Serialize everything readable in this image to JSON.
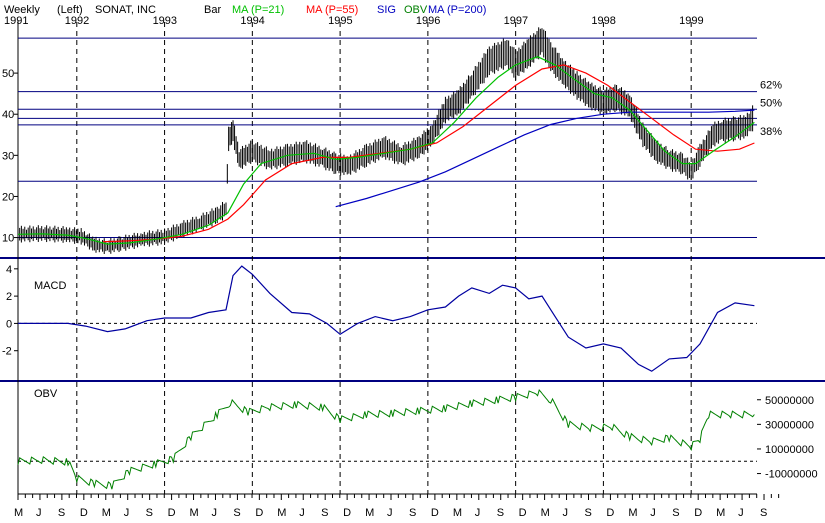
{
  "header": {
    "period": "Weekly",
    "axis_side": "(Left)",
    "company": "SONAT, INC",
    "bar_label": "Bar",
    "ma21_label": "MA (P=21)",
    "ma55_label": "MA (P=55)",
    "sig_label": "SIG",
    "obv_label": "OBV",
    "ma200_label": "MA (P=200)"
  },
  "colors": {
    "price": "#000000",
    "ma21": "#00c000",
    "ma55": "#ff0000",
    "ma200": "#0000c0",
    "macd": "#0000a0",
    "obv": "#008000",
    "frame": "#000080"
  },
  "chart_data": [
    {
      "type": "line",
      "name": "price",
      "years": [
        "1991",
        "1992",
        "1993",
        "1994",
        "1995",
        "1996",
        "1997",
        "1998",
        "1999"
      ],
      "months": [
        "M",
        "J",
        "S",
        "D",
        "M",
        "J",
        "S",
        "D",
        "M",
        "J",
        "S",
        "D",
        "M",
        "J",
        "S",
        "D",
        "M",
        "J",
        "S",
        "D",
        "M",
        "J",
        "S",
        "D",
        "M",
        "J",
        "S",
        "D",
        "M",
        "J",
        "S",
        "D",
        "M",
        "J",
        "S"
      ],
      "x_start": 1991.33,
      "x_end": 1999.75,
      "ylim": [
        6,
        60
      ],
      "yticks": [
        10,
        20,
        30,
        40,
        50
      ],
      "levels": [
        {
          "value": 58.5,
          "label": ""
        },
        {
          "value": 45.5,
          "label": "62%"
        },
        {
          "value": 41.2,
          "label": "50%"
        },
        {
          "value": 39.0,
          "label": ""
        },
        {
          "value": 37.4,
          "label": "38%"
        },
        {
          "value": 23.7,
          "label": ""
        },
        {
          "value": 10.0,
          "label": ""
        }
      ],
      "close": [
        [
          1991.33,
          10.8
        ],
        [
          1991.6,
          11
        ],
        [
          1991.9,
          10.7
        ],
        [
          1992.05,
          10.3
        ],
        [
          1992.2,
          8.3
        ],
        [
          1992.35,
          7.8
        ],
        [
          1992.5,
          8.5
        ],
        [
          1992.75,
          9.6
        ],
        [
          1993.0,
          10.2
        ],
        [
          1993.2,
          12
        ],
        [
          1993.4,
          13.5
        ],
        [
          1993.6,
          15.5
        ],
        [
          1993.7,
          17
        ],
        [
          1993.73,
          34
        ],
        [
          1993.78,
          36
        ],
        [
          1993.85,
          29
        ],
        [
          1994.0,
          31
        ],
        [
          1994.2,
          29
        ],
        [
          1994.4,
          30
        ],
        [
          1994.6,
          31
        ],
        [
          1994.8,
          29.5
        ],
        [
          1994.95,
          28
        ],
        [
          1995.1,
          27.5
        ],
        [
          1995.3,
          30
        ],
        [
          1995.5,
          32
        ],
        [
          1995.7,
          30
        ],
        [
          1995.9,
          32
        ],
        [
          1996.05,
          35
        ],
        [
          1996.2,
          41
        ],
        [
          1996.35,
          43
        ],
        [
          1996.5,
          47
        ],
        [
          1996.7,
          53
        ],
        [
          1996.9,
          55
        ],
        [
          1997.0,
          52
        ],
        [
          1997.15,
          55
        ],
        [
          1997.3,
          58
        ],
        [
          1997.4,
          54
        ],
        [
          1997.55,
          50
        ],
        [
          1997.7,
          47
        ],
        [
          1997.85,
          44.5
        ],
        [
          1998.0,
          43
        ],
        [
          1998.15,
          44
        ],
        [
          1998.3,
          42
        ],
        [
          1998.45,
          35
        ],
        [
          1998.6,
          31
        ],
        [
          1998.75,
          29
        ],
        [
          1998.9,
          28
        ],
        [
          1999.0,
          26
        ],
        [
          1999.1,
          30
        ],
        [
          1999.25,
          35
        ],
        [
          1999.35,
          36
        ],
        [
          1999.5,
          36.5
        ],
        [
          1999.62,
          37
        ],
        [
          1999.72,
          39.5
        ]
      ],
      "ma21": [
        [
          1991.33,
          10.8
        ],
        [
          1991.6,
          10.9
        ],
        [
          1991.9,
          10.6
        ],
        [
          1992.1,
          9.8
        ],
        [
          1992.35,
          8.4
        ],
        [
          1992.6,
          8.7
        ],
        [
          1992.9,
          9.6
        ],
        [
          1993.2,
          10.8
        ],
        [
          1993.5,
          13
        ],
        [
          1993.72,
          16
        ],
        [
          1993.9,
          23
        ],
        [
          1994.1,
          28
        ],
        [
          1994.4,
          30
        ],
        [
          1994.7,
          30.5
        ],
        [
          1994.95,
          29
        ],
        [
          1995.2,
          29.5
        ],
        [
          1995.5,
          30.5
        ],
        [
          1995.8,
          31.5
        ],
        [
          1996.05,
          33
        ],
        [
          1996.3,
          38
        ],
        [
          1996.55,
          44
        ],
        [
          1996.8,
          49
        ],
        [
          1997.0,
          52
        ],
        [
          1997.25,
          54
        ],
        [
          1997.45,
          52
        ],
        [
          1997.7,
          48
        ],
        [
          1997.9,
          45
        ],
        [
          1998.1,
          44
        ],
        [
          1998.3,
          41
        ],
        [
          1998.5,
          36
        ],
        [
          1998.7,
          31
        ],
        [
          1998.9,
          28
        ],
        [
          1999.05,
          28
        ],
        [
          1999.25,
          31
        ],
        [
          1999.5,
          34.5
        ],
        [
          1999.72,
          38
        ]
      ],
      "ma55": [
        [
          1992.3,
          9
        ],
        [
          1992.6,
          9.2
        ],
        [
          1992.9,
          9.6
        ],
        [
          1993.2,
          10.3
        ],
        [
          1993.5,
          12
        ],
        [
          1993.72,
          14.5
        ],
        [
          1993.9,
          18
        ],
        [
          1994.15,
          24
        ],
        [
          1994.45,
          28
        ],
        [
          1994.8,
          29.5
        ],
        [
          1995.1,
          29.5
        ],
        [
          1995.45,
          30.5
        ],
        [
          1995.8,
          31.5
        ],
        [
          1996.1,
          33
        ],
        [
          1996.4,
          37
        ],
        [
          1996.7,
          42
        ],
        [
          1997.0,
          47
        ],
        [
          1997.3,
          51
        ],
        [
          1997.55,
          52
        ],
        [
          1997.8,
          50
        ],
        [
          1998.05,
          47
        ],
        [
          1998.3,
          43
        ],
        [
          1998.55,
          39
        ],
        [
          1998.8,
          35
        ],
        [
          1999.05,
          31.5
        ],
        [
          1999.3,
          31
        ],
        [
          1999.55,
          31.5
        ],
        [
          1999.72,
          33
        ]
      ],
      "ma200": [
        [
          1994.95,
          17.5
        ],
        [
          1995.3,
          19.5
        ],
        [
          1995.6,
          21.5
        ],
        [
          1995.9,
          23.5
        ],
        [
          1996.2,
          26
        ],
        [
          1996.5,
          29
        ],
        [
          1996.8,
          32
        ],
        [
          1997.1,
          35
        ],
        [
          1997.4,
          37.5
        ],
        [
          1997.7,
          39
        ],
        [
          1998.0,
          40
        ],
        [
          1998.3,
          40.5
        ],
        [
          1998.6,
          40.5
        ],
        [
          1998.9,
          40.5
        ],
        [
          1999.2,
          40.5
        ],
        [
          1999.5,
          40.7
        ],
        [
          1999.72,
          41
        ]
      ]
    },
    {
      "type": "line",
      "name": "MACD",
      "ylim": [
        -4,
        4.5
      ],
      "yticks": [
        4,
        2,
        0,
        -2
      ],
      "zero_line": 0,
      "values": [
        [
          1991.33,
          0
        ],
        [
          1991.9,
          0
        ],
        [
          1992.1,
          -0.2
        ],
        [
          1992.35,
          -0.6
        ],
        [
          1992.55,
          -0.4
        ],
        [
          1992.8,
          0.2
        ],
        [
          1993.0,
          0.4
        ],
        [
          1993.3,
          0.4
        ],
        [
          1993.5,
          0.8
        ],
        [
          1993.7,
          1.0
        ],
        [
          1993.78,
          3.5
        ],
        [
          1993.88,
          4.2
        ],
        [
          1994.0,
          3.6
        ],
        [
          1994.2,
          2.2
        ],
        [
          1994.45,
          0.8
        ],
        [
          1994.65,
          0.7
        ],
        [
          1994.85,
          0
        ],
        [
          1995.0,
          -0.8
        ],
        [
          1995.2,
          0
        ],
        [
          1995.4,
          0.5
        ],
        [
          1995.6,
          0.2
        ],
        [
          1995.8,
          0.5
        ],
        [
          1996.0,
          1.0
        ],
        [
          1996.2,
          1.2
        ],
        [
          1996.35,
          2.0
        ],
        [
          1996.5,
          2.6
        ],
        [
          1996.7,
          2.2
        ],
        [
          1996.85,
          2.8
        ],
        [
          1997.0,
          2.6
        ],
        [
          1997.15,
          1.8
        ],
        [
          1997.3,
          2.0
        ],
        [
          1997.45,
          0.5
        ],
        [
          1997.6,
          -1.0
        ],
        [
          1997.8,
          -1.8
        ],
        [
          1998.0,
          -1.5
        ],
        [
          1998.2,
          -1.8
        ],
        [
          1998.4,
          -3.0
        ],
        [
          1998.55,
          -3.5
        ],
        [
          1998.75,
          -2.6
        ],
        [
          1998.95,
          -2.5
        ],
        [
          1999.1,
          -1.5
        ],
        [
          1999.3,
          0.8
        ],
        [
          1999.5,
          1.5
        ],
        [
          1999.72,
          1.3
        ]
      ]
    },
    {
      "type": "line",
      "name": "OBV",
      "ylim": [
        -25000000,
        62000000
      ],
      "ytick_labels": [
        "50000000",
        "30000000",
        "10000000",
        "-10000000"
      ],
      "yticks": [
        50000000,
        30000000,
        10000000,
        -10000000
      ],
      "zero_line": 0,
      "values": [
        [
          1991.33,
          0
        ],
        [
          1991.6,
          1000000
        ],
        [
          1991.9,
          -500000
        ],
        [
          1992.0,
          -14000000
        ],
        [
          1992.2,
          -18000000
        ],
        [
          1992.4,
          -20000000
        ],
        [
          1992.6,
          -8000000
        ],
        [
          1992.9,
          -2000000
        ],
        [
          1993.1,
          2000000
        ],
        [
          1993.3,
          20000000
        ],
        [
          1993.6,
          38000000
        ],
        [
          1993.75,
          48000000
        ],
        [
          1993.95,
          40000000
        ],
        [
          1994.2,
          44000000
        ],
        [
          1994.5,
          46000000
        ],
        [
          1994.8,
          44000000
        ],
        [
          1995.0,
          34000000
        ],
        [
          1995.3,
          38000000
        ],
        [
          1995.6,
          39000000
        ],
        [
          1995.9,
          41000000
        ],
        [
          1996.2,
          43000000
        ],
        [
          1996.5,
          47000000
        ],
        [
          1996.8,
          50000000
        ],
        [
          1997.0,
          52000000
        ],
        [
          1997.25,
          56000000
        ],
        [
          1997.4,
          50000000
        ],
        [
          1997.6,
          30000000
        ],
        [
          1997.85,
          27000000
        ],
        [
          1998.1,
          28000000
        ],
        [
          1998.3,
          20000000
        ],
        [
          1998.55,
          16000000
        ],
        [
          1998.75,
          19000000
        ],
        [
          1999.0,
          12000000
        ],
        [
          1999.1,
          18000000
        ],
        [
          1999.2,
          38000000
        ],
        [
          1999.45,
          38000000
        ],
        [
          1999.72,
          38000000
        ]
      ]
    }
  ],
  "macd_title": "MACD",
  "obv_title": "OBV"
}
